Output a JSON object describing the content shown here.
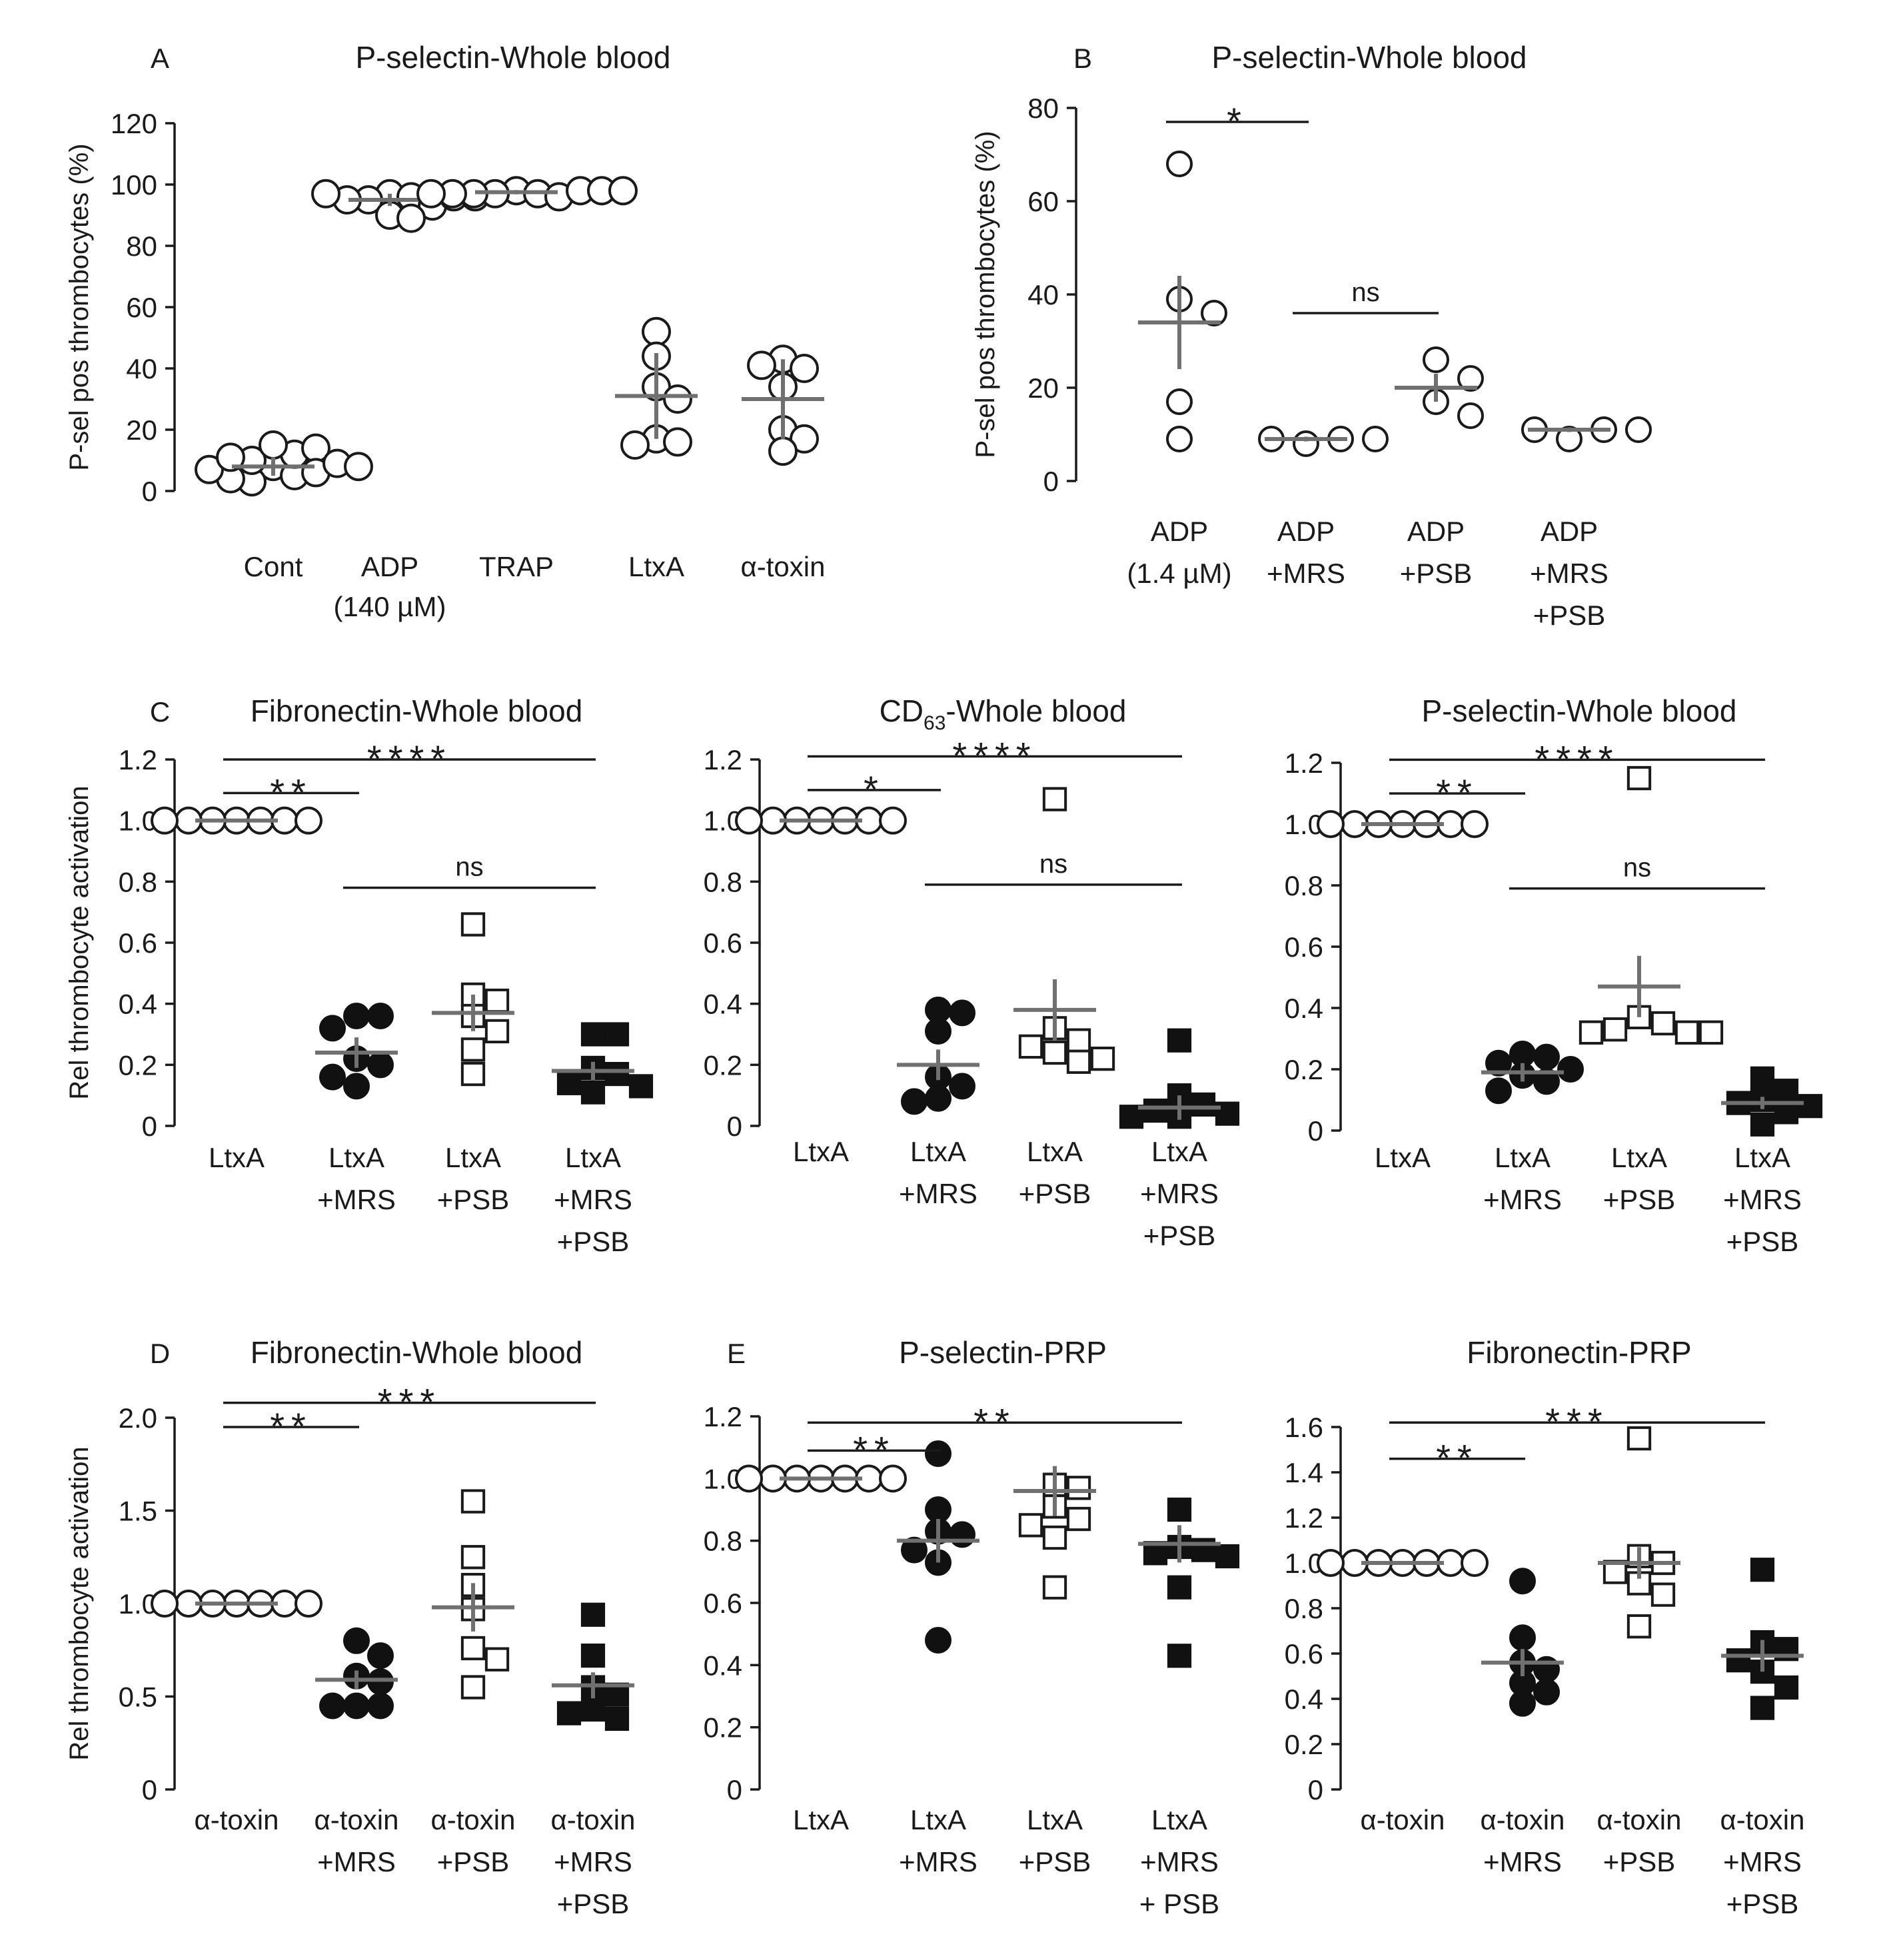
{
  "chart_data": [
    {
      "panel": "A",
      "type": "scatter",
      "title": "P-selectin-Whole blood",
      "ylabel": "P-sel pos thrombocytes (%)",
      "ylim": [
        0,
        120
      ],
      "yticks": [
        "0",
        "20",
        "40",
        "60",
        "80",
        "100",
        "120"
      ],
      "categories": [
        [
          "Cont"
        ],
        [
          "ADP",
          "(140 µM)"
        ],
        [
          "TRAP"
        ],
        [
          "LtxA"
        ],
        [
          "α-toxin"
        ]
      ],
      "series": [
        {
          "marker": "open-circle",
          "points": [
            8,
            5,
            3,
            10,
            12,
            14,
            15,
            6,
            4,
            9,
            7,
            11,
            8
          ],
          "mean": 8,
          "sd": 3
        },
        {
          "marker": "open-circle",
          "points": [
            97,
            96,
            95,
            93,
            90,
            89,
            95,
            96,
            97,
            96
          ],
          "mean": 95,
          "sd": 2
        },
        {
          "marker": "open-circle",
          "points": [
            98,
            97,
            97,
            96,
            97,
            98,
            97,
            98,
            97,
            98
          ],
          "mean": 97.5,
          "sd": 0.7
        },
        {
          "marker": "open-circle",
          "points": [
            52,
            44,
            34,
            30,
            17,
            16,
            15
          ],
          "mean": 31,
          "sd": 14
        },
        {
          "marker": "open-circle",
          "points": [
            43,
            40,
            41,
            34,
            20,
            17,
            13
          ],
          "mean": 30,
          "sd": 13
        }
      ],
      "annotations": []
    },
    {
      "panel": "B",
      "type": "scatter",
      "title": "P-selectin-Whole blood",
      "ylabel": "P-sel pos thrombocytes (%)",
      "ylim": [
        0,
        80
      ],
      "yticks": [
        "0",
        "20",
        "40",
        "60",
        "80"
      ],
      "categories": [
        [
          "ADP",
          "(1.4 µM)"
        ],
        [
          "ADP",
          "+MRS"
        ],
        [
          "ADP",
          "+PSB"
        ],
        [
          "ADP",
          "+MRS",
          "+PSB"
        ]
      ],
      "series": [
        {
          "marker": "open-circle",
          "points": [
            68,
            39,
            36,
            17,
            9
          ],
          "mean": 34,
          "sd": 10
        },
        {
          "marker": "open-circle",
          "points": [
            8,
            9,
            9,
            9
          ],
          "mean": 9,
          "sd": 0.5
        },
        {
          "marker": "open-circle",
          "points": [
            26,
            22,
            17,
            14
          ],
          "mean": 20,
          "sd": 3
        },
        {
          "marker": "open-circle",
          "points": [
            9,
            11,
            11,
            11
          ],
          "mean": 11,
          "sd": 0.5
        }
      ],
      "annotations": [
        {
          "from": 0,
          "to": 1,
          "y": 77,
          "label": "*"
        },
        {
          "from": 1,
          "to": 2,
          "y": 36,
          "label": "ns"
        }
      ]
    },
    {
      "panel": "C",
      "type": "scatter",
      "title": "Fibronectin-Whole blood",
      "ylabel": "Rel thrombocyte activation",
      "ylim": [
        0,
        1.2
      ],
      "yticks": [
        "0",
        "0.2",
        "0.4",
        "0.6",
        "0.8",
        "1.0",
        "1.2"
      ],
      "categories": [
        [
          "LtxA"
        ],
        [
          "LtxA",
          "+MRS"
        ],
        [
          "LtxA",
          "+PSB"
        ],
        [
          "LtxA",
          "+MRS",
          "+PSB"
        ]
      ],
      "series": [
        {
          "marker": "open-circle",
          "points": [
            1,
            1,
            1,
            1,
            1,
            1,
            1
          ],
          "mean": 1.0,
          "sd": 0
        },
        {
          "marker": "filled-circle",
          "points": [
            0.36,
            0.36,
            0.32,
            0.22,
            0.2,
            0.16,
            0.13
          ],
          "mean": 0.24,
          "sd": 0.05
        },
        {
          "marker": "open-square",
          "points": [
            0.66,
            0.43,
            0.41,
            0.36,
            0.31,
            0.25,
            0.17
          ],
          "mean": 0.37,
          "sd": 0.06
        },
        {
          "marker": "filled-square",
          "points": [
            0.3,
            0.3,
            0.19,
            0.17,
            0.14,
            0.13,
            0.11
          ],
          "mean": 0.18,
          "sd": 0.03
        }
      ],
      "annotations": [
        {
          "from": 0,
          "to": 1,
          "y": 1.09,
          "label": "**"
        },
        {
          "from": 0,
          "to": 3,
          "y": 1.2,
          "label": "****"
        },
        {
          "from": 1,
          "to": 3,
          "y": 0.78,
          "label": "ns"
        }
      ]
    },
    {
      "panel": "",
      "type": "scatter",
      "title_main": "CD",
      "title_sub": "63",
      "title_rest": "-Whole blood",
      "ylabel": "",
      "ylim": [
        0,
        1.2
      ],
      "yticks": [
        "0",
        "0.2",
        "0.4",
        "0.6",
        "0.8",
        "1.0",
        "1.2"
      ],
      "categories": [
        [
          "LtxA"
        ],
        [
          "LtxA",
          "+MRS"
        ],
        [
          "LtxA",
          "+PSB"
        ],
        [
          "LtxA",
          "+MRS",
          "+PSB"
        ]
      ],
      "series": [
        {
          "marker": "open-circle",
          "points": [
            1,
            1,
            1,
            1,
            1,
            1,
            1
          ],
          "mean": 1.0,
          "sd": 0
        },
        {
          "marker": "filled-circle",
          "points": [
            0.38,
            0.37,
            0.31,
            0.16,
            0.13,
            0.09,
            0.08
          ],
          "mean": 0.2,
          "sd": 0.05
        },
        {
          "marker": "open-square",
          "points": [
            1.07,
            0.32,
            0.28,
            0.26,
            0.24,
            0.22,
            0.21
          ],
          "mean": 0.38,
          "sd": 0.1
        },
        {
          "marker": "filled-square",
          "points": [
            0.28,
            0.1,
            0.07,
            0.05,
            0.04,
            0.03,
            0.03
          ],
          "mean": 0.06,
          "sd": 0.04
        }
      ],
      "annotations": [
        {
          "from": 0,
          "to": 1,
          "y": 1.1,
          "label": "*"
        },
        {
          "from": 0,
          "to": 3,
          "y": 1.21,
          "label": "****"
        },
        {
          "from": 1,
          "to": 3,
          "y": 0.79,
          "label": "ns"
        }
      ]
    },
    {
      "panel": "",
      "type": "scatter",
      "title": "P-selectin-Whole blood",
      "ylabel": "",
      "ylim": [
        0,
        1.2
      ],
      "yticks": [
        "0",
        "0.2",
        "0.4",
        "0.6",
        "0.8",
        "1.0",
        "1.2"
      ],
      "categories": [
        [
          "LtxA"
        ],
        [
          "LtxA",
          "+MRS"
        ],
        [
          "LtxA",
          "+PSB"
        ],
        [
          "LtxA",
          "+MRS",
          "+PSB"
        ]
      ],
      "series": [
        {
          "marker": "open-circle",
          "points": [
            1,
            1,
            1,
            1,
            1,
            1,
            1
          ],
          "mean": 1.0,
          "sd": 0
        },
        {
          "marker": "filled-circle",
          "points": [
            0.25,
            0.24,
            0.22,
            0.2,
            0.18,
            0.16,
            0.13
          ],
          "mean": 0.19,
          "sd": 0.03
        },
        {
          "marker": "open-square",
          "points": [
            1.15,
            0.37,
            0.35,
            0.33,
            0.32,
            0.32,
            0.32
          ],
          "mean": 0.47,
          "sd": 0.1
        },
        {
          "marker": "filled-square",
          "points": [
            0.17,
            0.13,
            0.1,
            0.09,
            0.08,
            0.06,
            0.02
          ],
          "mean": 0.09,
          "sd": 0.02
        }
      ],
      "annotations": [
        {
          "from": 0,
          "to": 1,
          "y": 1.1,
          "label": "**"
        },
        {
          "from": 0,
          "to": 3,
          "y": 1.21,
          "label": "****"
        },
        {
          "from": 1,
          "to": 3,
          "y": 0.79,
          "label": "ns"
        }
      ]
    },
    {
      "panel": "D",
      "type": "scatter",
      "title": "Fibronectin-Whole blood",
      "ylabel": "Rel thrombocyte activation",
      "ylim": [
        0,
        2.0
      ],
      "yticks": [
        "0",
        "0.5",
        "1.0",
        "1.5",
        "2.0"
      ],
      "categories": [
        [
          "α-toxin"
        ],
        [
          "α-toxin",
          "+MRS"
        ],
        [
          "α-toxin",
          "+PSB"
        ],
        [
          "α-toxin",
          "+MRS",
          "+PSB"
        ]
      ],
      "series": [
        {
          "marker": "open-circle",
          "points": [
            1,
            1,
            1,
            1,
            1,
            1,
            1
          ],
          "mean": 1.0,
          "sd": 0
        },
        {
          "marker": "filled-circle",
          "points": [
            0.8,
            0.72,
            0.61,
            0.58,
            0.45,
            0.45,
            0.45
          ],
          "mean": 0.59,
          "sd": 0.05
        },
        {
          "marker": "open-square",
          "points": [
            1.55,
            1.25,
            1.1,
            0.97,
            0.76,
            0.7,
            0.55
          ],
          "mean": 0.98,
          "sd": 0.13
        },
        {
          "marker": "filled-square",
          "points": [
            0.94,
            0.72,
            0.55,
            0.51,
            0.43,
            0.41,
            0.38
          ],
          "mean": 0.56,
          "sd": 0.07
        }
      ],
      "annotations": [
        {
          "from": 0,
          "to": 1,
          "y": 1.95,
          "label": "**"
        },
        {
          "from": 0,
          "to": 3,
          "y": 2.08,
          "label": "***"
        }
      ]
    },
    {
      "panel": "E",
      "type": "scatter",
      "title": "P-selectin-PRP",
      "ylabel": "",
      "ylim": [
        0,
        1.2
      ],
      "yticks": [
        "0",
        "0.2",
        "0.4",
        "0.6",
        "0.8",
        "1.0",
        "1.2"
      ],
      "categories": [
        [
          "LtxA"
        ],
        [
          "LtxA",
          "+MRS"
        ],
        [
          "LtxA",
          "+PSB"
        ],
        [
          "LtxA",
          "+MRS",
          "+ PSB"
        ]
      ],
      "series": [
        {
          "marker": "open-circle",
          "points": [
            1,
            1,
            1,
            1,
            1,
            1,
            1
          ],
          "mean": 1.0,
          "sd": 0
        },
        {
          "marker": "filled-circle",
          "points": [
            1.08,
            0.9,
            0.83,
            0.82,
            0.77,
            0.73,
            0.48
          ],
          "mean": 0.8,
          "sd": 0.07
        },
        {
          "marker": "open-square",
          "points": [
            0.98,
            0.97,
            0.91,
            0.87,
            0.85,
            0.81,
            0.65
          ],
          "mean": 0.96,
          "sd": 0.08
        },
        {
          "marker": "filled-square",
          "points": [
            0.9,
            0.78,
            0.77,
            0.76,
            0.75,
            0.65,
            0.43
          ],
          "mean": 0.79,
          "sd": 0.06
        }
      ],
      "annotations": [
        {
          "from": 0,
          "to": 1,
          "y": 1.09,
          "label": "**"
        },
        {
          "from": 0,
          "to": 3,
          "y": 1.18,
          "label": "**"
        }
      ]
    },
    {
      "panel": "",
      "type": "scatter",
      "title": "Fibronectin-PRP",
      "ylabel": "",
      "ylim": [
        0,
        1.6
      ],
      "yticks": [
        "0",
        "0.2",
        "0.4",
        "0.6",
        "0.8",
        "1.0",
        "1.2",
        "1.4",
        "1.6"
      ],
      "categories": [
        [
          "α-toxin"
        ],
        [
          "α-toxin",
          "+MRS"
        ],
        [
          "α-toxin",
          "+PSB"
        ],
        [
          "α-toxin",
          "+MRS",
          "+PSB"
        ]
      ],
      "series": [
        {
          "marker": "open-circle",
          "points": [
            1,
            1,
            1,
            1,
            1,
            1,
            1
          ],
          "mean": 1.0,
          "sd": 0
        },
        {
          "marker": "filled-circle",
          "points": [
            0.92,
            0.67,
            0.56,
            0.53,
            0.47,
            0.43,
            0.38
          ],
          "mean": 0.56,
          "sd": 0.06
        },
        {
          "marker": "open-square",
          "points": [
            1.55,
            1.03,
            1.0,
            0.96,
            0.91,
            0.86,
            0.72
          ],
          "mean": 1.0,
          "sd": 0.07
        },
        {
          "marker": "filled-square",
          "points": [
            0.97,
            0.65,
            0.62,
            0.57,
            0.52,
            0.45,
            0.36
          ],
          "mean": 0.59,
          "sd": 0.07
        }
      ],
      "annotations": [
        {
          "from": 0,
          "to": 1,
          "y": 1.46,
          "label": "**"
        },
        {
          "from": 0,
          "to": 3,
          "y": 1.62,
          "label": "***"
        }
      ]
    }
  ]
}
